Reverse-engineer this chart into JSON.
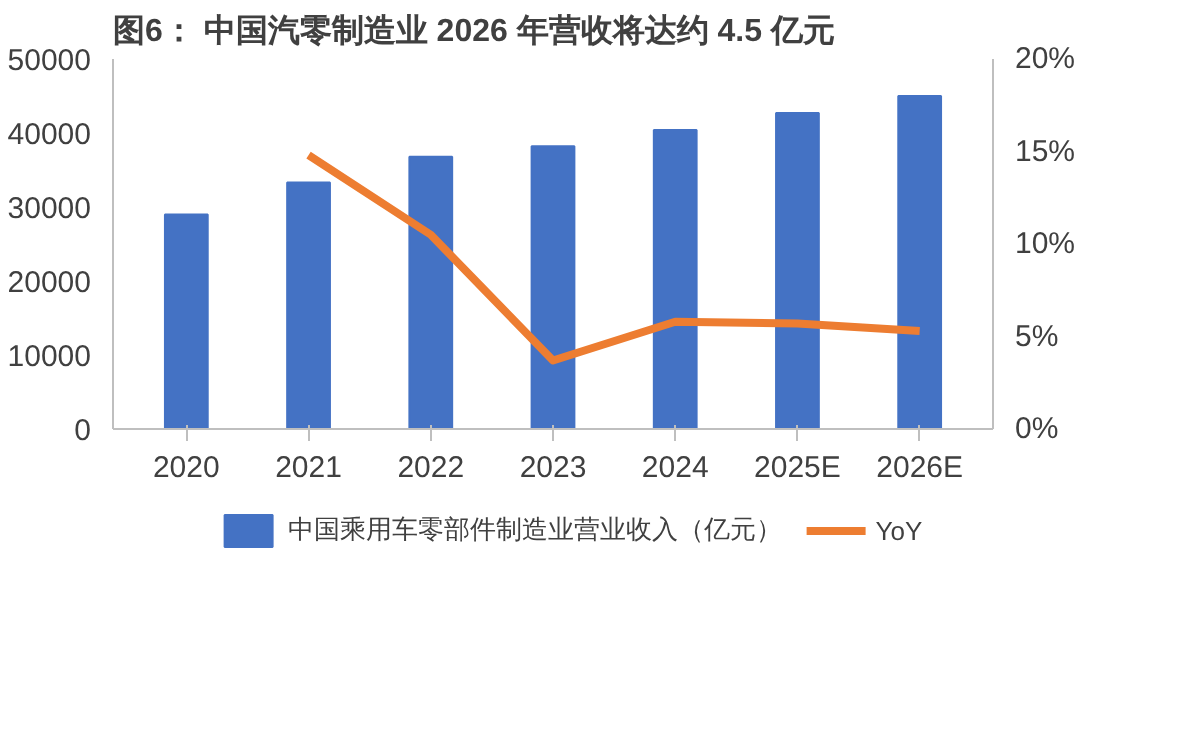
{
  "chart_data": {
    "type": "bar",
    "title": "图6： 中国汽零制造业 2026 年营收将达约 4.5 亿元",
    "categories": [
      "2020",
      "2021",
      "2022",
      "2023",
      "2024",
      "2025E",
      "2026E"
    ],
    "series": [
      {
        "name": "中国乘用车零部件制造业营业收入（亿元）",
        "color": "#4472c4",
        "values": [
          29000,
          33300,
          36800,
          38200,
          40400,
          42700,
          45000
        ]
      },
      {
        "name": "YoY",
        "color": "#ed7d31",
        "type": "line",
        "axis": "y2",
        "values": [
          null,
          14.8,
          10.5,
          3.7,
          5.8,
          5.7,
          5.3
        ]
      }
    ],
    "ylim": [
      0,
      50000
    ],
    "yticks": [
      0,
      10000,
      20000,
      30000,
      40000,
      50000
    ],
    "y2lim": [
      0,
      20
    ],
    "y2ticks": [
      {
        "value": 0,
        "label": "0%"
      },
      {
        "value": 5,
        "label": "5%"
      },
      {
        "value": 10,
        "label": "10%"
      },
      {
        "value": 15,
        "label": "15%"
      },
      {
        "value": 20,
        "label": "20%"
      }
    ],
    "grid": false,
    "legend": "bottom",
    "marker": "none",
    "line_style": "solid"
  }
}
